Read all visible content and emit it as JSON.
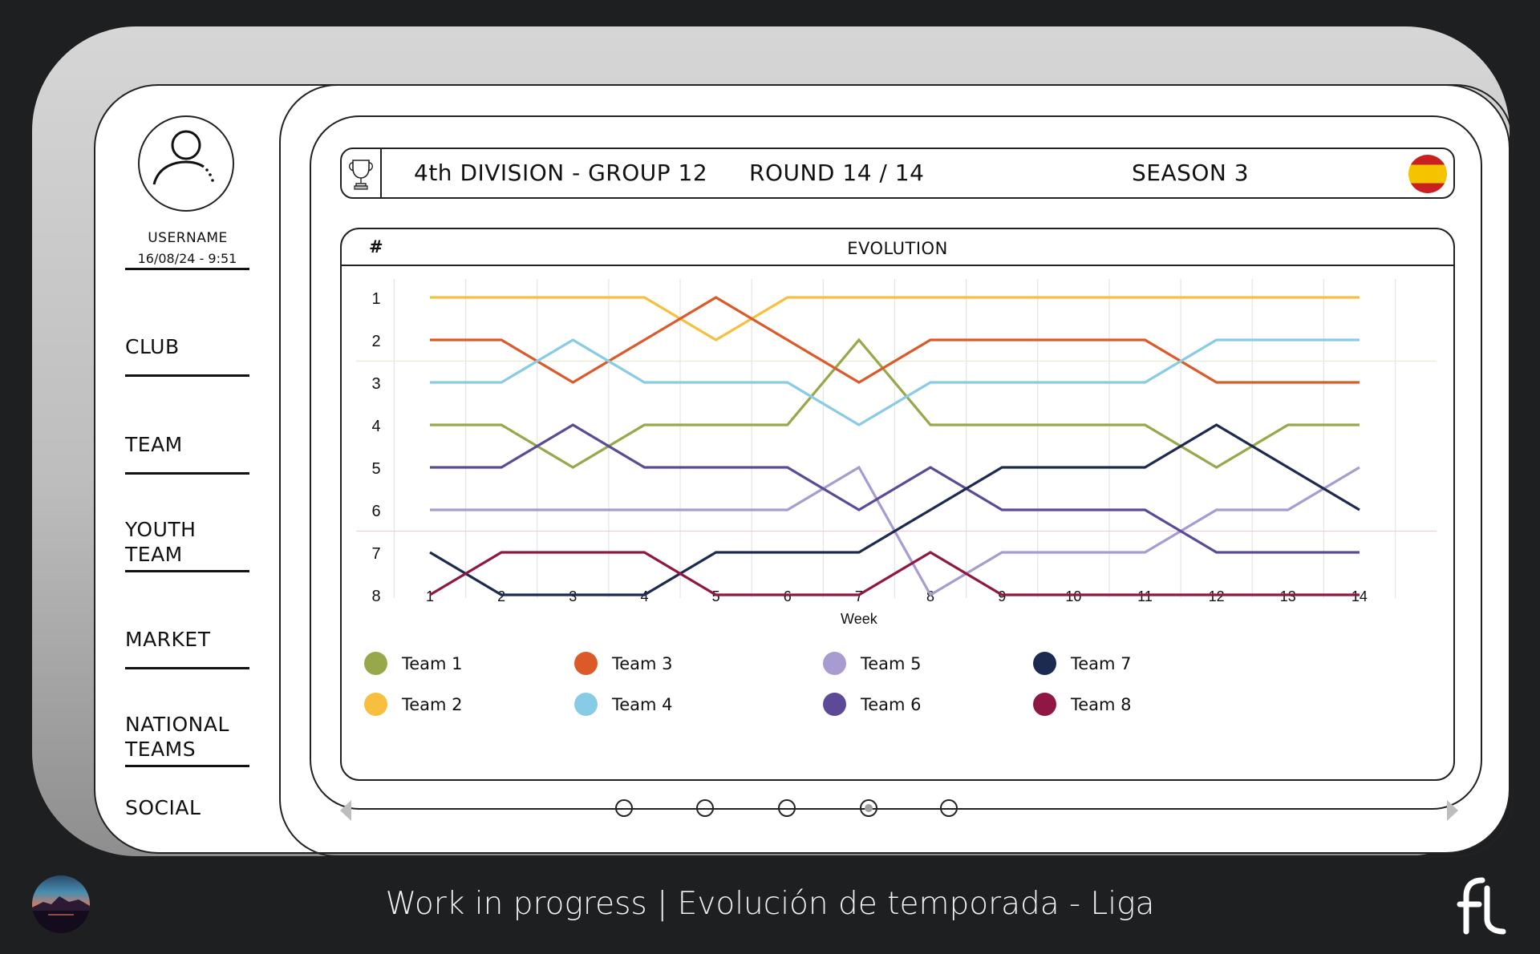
{
  "user": {
    "username": "USERNAME",
    "datetime": "16/08/24 - 9:51"
  },
  "nav": [
    {
      "label": "CLUB"
    },
    {
      "label": "TEAM"
    },
    {
      "label": "YOUTH\nTEAM"
    },
    {
      "label": "MARKET"
    },
    {
      "label": "NATIONAL\nTEAMS"
    },
    {
      "label": "SOCIAL"
    }
  ],
  "header": {
    "division": "4th DIVISION - GROUP 12",
    "round": "ROUND 14 / 14",
    "season": "SEASON 3",
    "flag_icon": "spain-flag-icon",
    "trophy_icon": "trophy-icon"
  },
  "panel": {
    "hash": "#",
    "title": "EVOLUTION"
  },
  "chart_data": {
    "type": "line",
    "title": "",
    "xlabel": "Week",
    "ylabel": "",
    "x": [
      1,
      2,
      3,
      4,
      5,
      6,
      7,
      8,
      9,
      10,
      11,
      12,
      13,
      14
    ],
    "ylim": [
      1,
      8
    ],
    "y_reversed": true,
    "y_ticks": [
      1,
      2,
      3,
      4,
      5,
      6,
      7,
      8
    ],
    "grid": "vertical",
    "series": [
      {
        "name": "Team 1",
        "color": "#96a84a",
        "values": [
          4,
          4,
          5,
          4,
          4,
          4,
          2,
          4,
          4,
          4,
          4,
          5,
          4,
          4
        ]
      },
      {
        "name": "Team 2",
        "color": "#f7bf3e",
        "values": [
          1,
          1,
          1,
          1,
          2,
          1,
          1,
          1,
          1,
          1,
          1,
          1,
          1,
          1
        ]
      },
      {
        "name": "Team 3",
        "color": "#dc5a2a",
        "values": [
          2,
          2,
          3,
          2,
          1,
          2,
          3,
          2,
          2,
          2,
          2,
          3,
          3,
          3
        ]
      },
      {
        "name": "Team 4",
        "color": "#88cbe5",
        "values": [
          3,
          3,
          2,
          3,
          3,
          3,
          4,
          3,
          3,
          3,
          3,
          2,
          2,
          2
        ]
      },
      {
        "name": "Team 5",
        "color": "#a79bd0",
        "values": [
          6,
          6,
          6,
          6,
          6,
          6,
          5,
          8,
          7,
          7,
          7,
          6,
          6,
          5
        ]
      },
      {
        "name": "Team 6",
        "color": "#5c4a96",
        "values": [
          5,
          5,
          4,
          5,
          5,
          5,
          6,
          5,
          6,
          6,
          6,
          7,
          7,
          7
        ]
      },
      {
        "name": "Team 7",
        "color": "#1b2a4e",
        "values": [
          7,
          8,
          8,
          8,
          7,
          7,
          7,
          6,
          5,
          5,
          5,
          4,
          5,
          6
        ]
      },
      {
        "name": "Team 8",
        "color": "#8e1744",
        "values": [
          8,
          7,
          7,
          7,
          8,
          8,
          8,
          7,
          8,
          8,
          8,
          8,
          8,
          8
        ]
      }
    ]
  },
  "pager": {
    "pages": 5,
    "active": 4
  },
  "footer": {
    "text": "Work in progress  |  Evolución de temporada -  Liga"
  }
}
